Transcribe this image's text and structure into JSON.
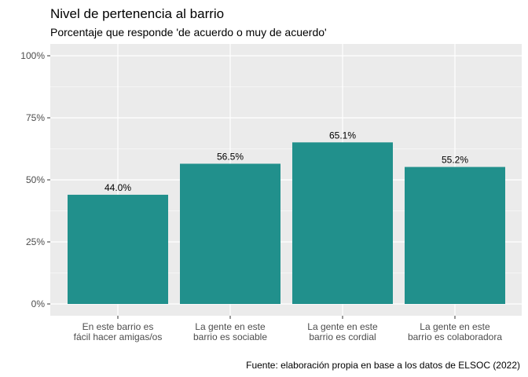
{
  "chart_data": {
    "type": "bar",
    "title": "Nivel de pertenencia al barrio",
    "subtitle": "Porcentaje que responde 'de acuerdo o muy de acuerdo'",
    "caption": "Fuente: elaboración propia en base a los datos de ELSOC (2022)",
    "xlabel": "",
    "ylabel": "",
    "categories": [
      [
        "En este barrio es",
        "fácil hacer amigas/os"
      ],
      [
        "La gente en este",
        "barrio es sociable"
      ],
      [
        "La gente en este",
        "barrio es cordial"
      ],
      [
        "La gente en este",
        "barrio es colaboradora"
      ]
    ],
    "values": [
      44.0,
      56.5,
      65.1,
      55.2
    ],
    "data_labels": [
      "44.0%",
      "56.5%",
      "65.1%",
      "55.2%"
    ],
    "ylim": [
      0,
      100
    ],
    "yticks": [
      0,
      25,
      50,
      75,
      100
    ],
    "ytick_labels": [
      "0%",
      "25%",
      "50%",
      "75%",
      "100%"
    ],
    "grid": true,
    "colors": {
      "bar": "#21908C",
      "panel": "#EBEBEB",
      "grid": "#FFFFFF"
    }
  }
}
